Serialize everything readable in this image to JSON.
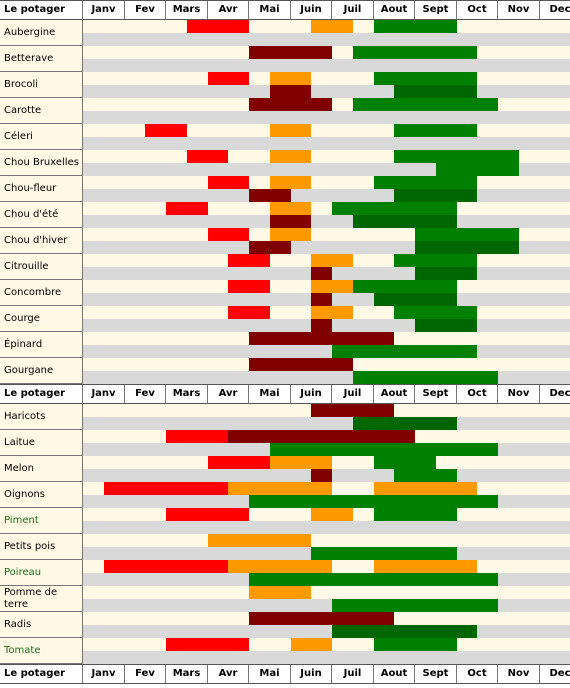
{
  "header": {
    "title": "Le potager",
    "months": [
      "Janv",
      "Fev",
      "Mars",
      "Avr",
      "Mai",
      "Juin",
      "Juil",
      "Aout",
      "Sept",
      "Oct",
      "Nov",
      "Dec"
    ]
  },
  "legend_colors": {
    "semis_abri": "#ff0000",
    "repiquage": "#ff9900",
    "semis_terre": "#800000",
    "recolte": "#008000",
    "recolte_fonce": "#006600"
  },
  "chart_data": {
    "type": "table",
    "x_unit": "month (0 = start of Janv, 12 = end of Dec)",
    "groups": [
      {
        "header_row": true,
        "crops": [
          {
            "name": "Aubergine",
            "top": [
              [
                2.5,
                4,
                "red"
              ],
              [
                5.5,
                6.5,
                "orange"
              ],
              [
                7,
                9,
                "green"
              ]
            ],
            "bottom": []
          },
          {
            "name": "Betterave",
            "top": [
              [
                4,
                6,
                "maroon"
              ],
              [
                6.5,
                9.5,
                "green"
              ]
            ],
            "bottom": []
          },
          {
            "name": "Brocoli",
            "top": [
              [
                3,
                4,
                "red"
              ],
              [
                4.5,
                5.5,
                "orange"
              ],
              [
                7,
                9.5,
                "green"
              ]
            ],
            "bottom": [
              [
                4.5,
                5.5,
                "maroon"
              ],
              [
                7.5,
                9.5,
                "darkgreen"
              ]
            ]
          },
          {
            "name": "Carotte",
            "top": [
              [
                4,
                6,
                "maroon"
              ],
              [
                6.5,
                10,
                "green"
              ]
            ],
            "bottom": []
          },
          {
            "name": "Céleri",
            "top": [
              [
                1.5,
                2.5,
                "red"
              ],
              [
                4.5,
                5.5,
                "orange"
              ],
              [
                7.5,
                9.5,
                "green"
              ]
            ],
            "bottom": []
          },
          {
            "name": "Chou Bruxelles",
            "top": [
              [
                2.5,
                3.5,
                "red"
              ],
              [
                4.5,
                5.5,
                "orange"
              ],
              [
                7.5,
                10.5,
                "green"
              ]
            ],
            "bottom": [
              [
                8.5,
                10.5,
                "green"
              ]
            ]
          },
          {
            "name": "Chou-fleur",
            "top": [
              [
                3,
                4,
                "red"
              ],
              [
                4.5,
                5.5,
                "orange"
              ],
              [
                7,
                9.5,
                "green"
              ]
            ],
            "bottom": [
              [
                4,
                5,
                "maroon"
              ],
              [
                7.5,
                9.5,
                "darkgreen"
              ]
            ]
          },
          {
            "name": "Chou d'été",
            "top": [
              [
                2,
                3,
                "red"
              ],
              [
                4.5,
                5.5,
                "orange"
              ],
              [
                6,
                9,
                "green"
              ]
            ],
            "bottom": [
              [
                4.5,
                5.5,
                "maroon"
              ],
              [
                6.5,
                9,
                "darkgreen"
              ]
            ]
          },
          {
            "name": "Chou d'hiver",
            "top": [
              [
                3,
                4,
                "red"
              ],
              [
                4.5,
                5.5,
                "orange"
              ],
              [
                8,
                10.5,
                "green"
              ]
            ],
            "bottom": [
              [
                4,
                5,
                "maroon"
              ],
              [
                8,
                10.5,
                "darkgreen"
              ]
            ]
          },
          {
            "name": "Citrouille",
            "top": [
              [
                3.5,
                4.5,
                "red"
              ],
              [
                5.5,
                6.5,
                "orange"
              ],
              [
                7.5,
                9.5,
                "green"
              ]
            ],
            "bottom": [
              [
                5.5,
                6,
                "maroon"
              ],
              [
                8,
                9.5,
                "darkgreen"
              ]
            ]
          },
          {
            "name": "Concombre",
            "top": [
              [
                3.5,
                4.5,
                "red"
              ],
              [
                5.5,
                6.5,
                "orange"
              ],
              [
                6.5,
                9,
                "green"
              ]
            ],
            "bottom": [
              [
                5.5,
                6,
                "maroon"
              ],
              [
                7,
                9,
                "darkgreen"
              ]
            ]
          },
          {
            "name": "Courge",
            "top": [
              [
                3.5,
                4.5,
                "red"
              ],
              [
                5.5,
                6.5,
                "orange"
              ],
              [
                7.5,
                9.5,
                "green"
              ]
            ],
            "bottom": [
              [
                5.5,
                6,
                "maroon"
              ],
              [
                8,
                9.5,
                "darkgreen"
              ]
            ]
          },
          {
            "name": "Épinard",
            "top": [
              [
                4,
                7.5,
                "maroon"
              ]
            ],
            "bottom": [
              [
                6,
                9.5,
                "green"
              ]
            ]
          },
          {
            "name": "Gourgane",
            "top": [
              [
                4,
                6.5,
                "maroon"
              ]
            ],
            "bottom": [
              [
                6.5,
                10,
                "green"
              ]
            ]
          }
        ]
      },
      {
        "header_row": true,
        "crops": [
          {
            "name": "Haricots",
            "top": [
              [
                5.5,
                7.5,
                "maroon"
              ]
            ],
            "bottom": [
              [
                6.5,
                9,
                "darkgreen"
              ]
            ]
          },
          {
            "name": "Laitue",
            "top": [
              [
                2,
                3.5,
                "red"
              ],
              [
                3.5,
                8,
                "maroon"
              ]
            ],
            "bottom": [
              [
                4.5,
                10,
                "green"
              ]
            ]
          },
          {
            "name": "Melon",
            "top": [
              [
                3,
                4.5,
                "red"
              ],
              [
                4.5,
                6,
                "orange"
              ],
              [
                7,
                8.5,
                "green"
              ]
            ],
            "bottom": [
              [
                5.5,
                6,
                "maroon"
              ],
              [
                7.5,
                9,
                "green"
              ]
            ]
          },
          {
            "name": "Oignons",
            "top": [
              [
                0.5,
                3.5,
                "red"
              ],
              [
                3.5,
                6,
                "orange"
              ],
              [
                7,
                9.5,
                "orange"
              ]
            ],
            "bottom": [
              [
                4,
                10,
                "green"
              ]
            ]
          },
          {
            "name": "Piment",
            "green_label": true,
            "top": [
              [
                2,
                4,
                "red"
              ],
              [
                5.5,
                6.5,
                "orange"
              ],
              [
                7,
                9,
                "green"
              ]
            ],
            "bottom": []
          },
          {
            "name": "Petits pois",
            "top": [
              [
                3,
                5.5,
                "orange"
              ]
            ],
            "bottom": [
              [
                5.5,
                9,
                "green"
              ]
            ]
          },
          {
            "name": "Poireau",
            "green_label": true,
            "top": [
              [
                0.5,
                3.5,
                "red"
              ],
              [
                3.5,
                6,
                "orange"
              ],
              [
                7,
                9.5,
                "orange"
              ]
            ],
            "bottom": [
              [
                4,
                10,
                "green"
              ]
            ]
          },
          {
            "name": "Pomme de terre",
            "top": [
              [
                4,
                5.5,
                "orange"
              ]
            ],
            "bottom": [
              [
                6,
                10,
                "green"
              ]
            ]
          },
          {
            "name": "Radis",
            "top": [
              [
                4,
                7.5,
                "maroon"
              ]
            ],
            "bottom": [
              [
                6,
                9.5,
                "darkgreen"
              ]
            ]
          },
          {
            "name": "Tomate",
            "green_label": true,
            "top": [
              [
                2,
                4,
                "red"
              ],
              [
                5,
                6,
                "orange"
              ],
              [
                7,
                9,
                "green"
              ]
            ],
            "bottom": []
          }
        ]
      }
    ],
    "footer_header_row": true
  }
}
